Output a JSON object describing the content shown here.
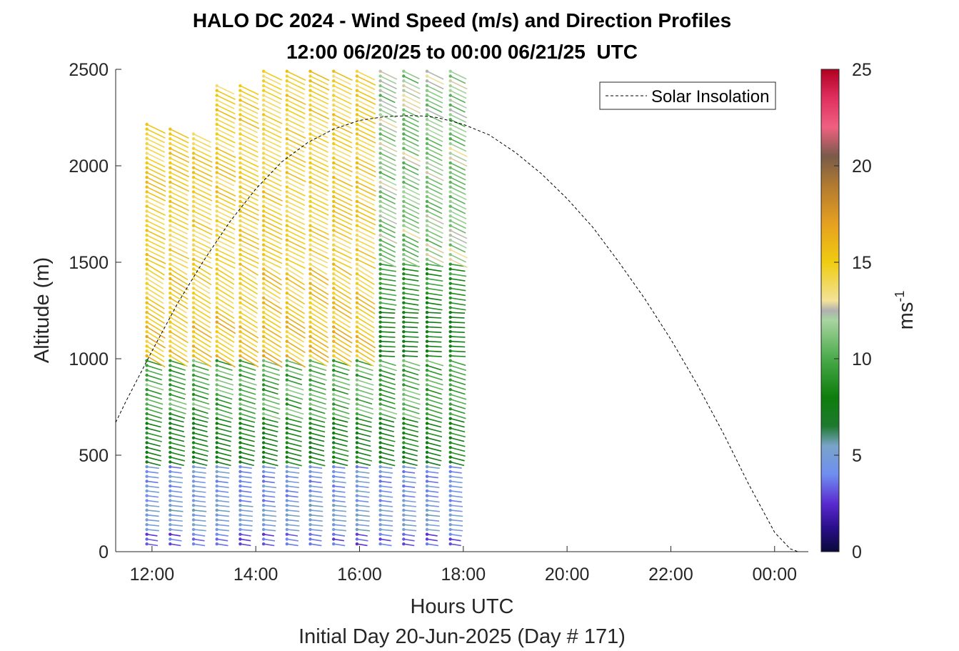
{
  "chart_data": {
    "type": "scatter",
    "title": "HALO DC 2024 - Wind Speed (m/s) and Direction Profiles",
    "subtitle": "12:00 06/20/25 to 00:00 06/21/25  UTC",
    "xlabel": "Hours UTC",
    "xlabel2": "Initial Day 20-Jun-2025 (Day # 171)",
    "ylabel": "Altitude (m)",
    "xlim": [
      11.3,
      24.65
    ],
    "ylim": [
      0,
      2500
    ],
    "xticks": [
      12,
      14,
      16,
      18,
      20,
      22,
      24
    ],
    "xtick_labels": [
      "12:00",
      "14:00",
      "16:00",
      "18:00",
      "20:00",
      "22:00",
      "00:00"
    ],
    "yticks": [
      0,
      500,
      1000,
      1500,
      2000,
      2500
    ],
    "ytick_labels": [
      "0",
      "500",
      "1000",
      "1500",
      "2000",
      "2500"
    ],
    "colorbar": {
      "label": "ms",
      "label_superscript": "-1",
      "range": [
        0,
        25
      ],
      "ticks": [
        0,
        5,
        10,
        15,
        20,
        25
      ],
      "tick_labels": [
        "0",
        "5",
        "10",
        "15",
        "20",
        "25"
      ]
    },
    "legend": {
      "entries": [
        "Solar Insolation"
      ],
      "location": "top-right"
    },
    "solar_insolation": {
      "x": [
        11.3,
        11.5,
        12.0,
        12.5,
        13.0,
        13.5,
        14.0,
        14.5,
        15.0,
        15.5,
        16.0,
        16.5,
        17.0,
        17.2,
        17.5,
        18.0,
        18.5,
        19.0,
        19.5,
        20.0,
        20.5,
        21.0,
        21.5,
        22.0,
        22.5,
        23.0,
        23.5,
        24.0,
        24.3,
        24.45,
        24.6
      ],
      "y": [
        670,
        780,
        1040,
        1290,
        1510,
        1710,
        1880,
        2020,
        2120,
        2190,
        2235,
        2255,
        2260,
        2258,
        2250,
        2215,
        2160,
        2070,
        1960,
        1830,
        1680,
        1500,
        1310,
        1100,
        870,
        620,
        350,
        100,
        15,
        0,
        0
      ]
    },
    "wind_profiles": {
      "description_of_fields": "x in hours UTC, y in metres",
      "profile_times": [
        11.9,
        12.35,
        12.8,
        13.25,
        13.7,
        14.15,
        14.6,
        15.05,
        15.5,
        15.95,
        16.4,
        16.85,
        17.3,
        17.75
      ],
      "profile_top_altitude_m": [
        2230,
        2200,
        2180,
        2430,
        2420,
        2500,
        2500,
        2500,
        2500,
        2500,
        2500,
        2500,
        2500,
        2500
      ],
      "altitude_step_m": 25,
      "lowest_altitude_m": 40,
      "speed_ms_by_layer": {
        "below_100m": 2.5,
        "100_to_250m": 4.5,
        "250_to_450m": 4.2,
        "450_to_700m": 7.5,
        "700_to_1000m": 9.5,
        "1000_to_1500m_early": 15.5,
        "1000_to_1250m_late": 7.5,
        "1250_to_1500m_late": 8.5,
        "1500_to_2500m_early": 14.5,
        "1500_to_2500m_late": 11.0
      },
      "direction_note": "vectors point from upper-left to lower-right above 600 m, roughly eastward near surface"
    }
  }
}
